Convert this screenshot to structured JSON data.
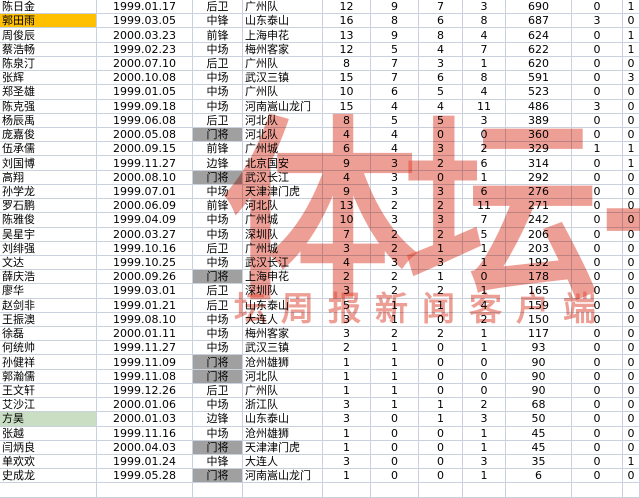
{
  "watermark": {
    "logo_text": "体坛+",
    "tagline_text": "坛周报新闻客户端",
    "color": "#de4634"
  },
  "highlight_colors": {
    "selected_name_orange": "#ffc000",
    "marked_name_green": "#c9dec3",
    "goalkeeper_gray": "#a0a0a0"
  },
  "columns": [
    "name",
    "birth_date",
    "position",
    "club",
    "stat1",
    "stat2",
    "stat3",
    "stat4",
    "minutes",
    "stat6",
    "stat7"
  ],
  "rows": [
    {
      "name": "陈日金",
      "date": "1999.01.17",
      "pos": "后卫",
      "club": "广州队",
      "vals": [
        12,
        9,
        7,
        3,
        690,
        0,
        1
      ],
      "name_bg": null,
      "pos_bg": null
    },
    {
      "name": "郭田雨",
      "date": "1999.03.05",
      "pos": "中锋",
      "club": "山东泰山",
      "vals": [
        16,
        8,
        6,
        8,
        687,
        3,
        0
      ],
      "name_bg": "orange",
      "pos_bg": null
    },
    {
      "name": "周俊辰",
      "date": "2000.03.23",
      "pos": "前锋",
      "club": "上海申花",
      "vals": [
        13,
        9,
        8,
        4,
        624,
        0,
        1
      ],
      "name_bg": null,
      "pos_bg": null
    },
    {
      "name": "蔡浩畅",
      "date": "1999.02.23",
      "pos": "中场",
      "club": "梅州客家",
      "vals": [
        12,
        5,
        4,
        7,
        622,
        0,
        1
      ],
      "name_bg": null,
      "pos_bg": null
    },
    {
      "name": "陈泉汀",
      "date": "2000.07.10",
      "pos": "后卫",
      "club": "广州队",
      "vals": [
        8,
        7,
        3,
        1,
        620,
        0,
        0
      ],
      "name_bg": null,
      "pos_bg": null
    },
    {
      "name": "张辉",
      "date": "2000.10.08",
      "pos": "中场",
      "club": "武汉三镇",
      "vals": [
        15,
        7,
        6,
        8,
        591,
        0,
        3
      ],
      "name_bg": null,
      "pos_bg": null
    },
    {
      "name": "郑圣雄",
      "date": "1999.01.05",
      "pos": "中场",
      "club": "广州队",
      "vals": [
        10,
        6,
        5,
        4,
        523,
        0,
        0
      ],
      "name_bg": null,
      "pos_bg": null
    },
    {
      "name": "陈克强",
      "date": "1999.09.18",
      "pos": "中场",
      "club": "河南嵩山龙门",
      "vals": [
        15,
        4,
        4,
        11,
        486,
        3,
        0
      ],
      "name_bg": null,
      "pos_bg": null
    },
    {
      "name": "杨辰禹",
      "date": "1999.06.08",
      "pos": "后卫",
      "club": "河北队",
      "vals": [
        8,
        5,
        5,
        3,
        389,
        0,
        0
      ],
      "name_bg": null,
      "pos_bg": null
    },
    {
      "name": "庞嘉俊",
      "date": "2000.05.08",
      "pos": "门将",
      "club": "河北队",
      "vals": [
        4,
        4,
        0,
        0,
        360,
        0,
        0
      ],
      "name_bg": null,
      "pos_bg": "gray"
    },
    {
      "name": "伍承儒",
      "date": "2000.09.15",
      "pos": "前锋",
      "club": "广州城",
      "vals": [
        6,
        4,
        3,
        2,
        329,
        1,
        1
      ],
      "name_bg": null,
      "pos_bg": null
    },
    {
      "name": "刘国博",
      "date": "1999.11.27",
      "pos": "边锋",
      "club": "北京国安",
      "vals": [
        9,
        3,
        2,
        6,
        314,
        0,
        1
      ],
      "name_bg": null,
      "pos_bg": null
    },
    {
      "name": "高翔",
      "date": "2000.08.10",
      "pos": "门将",
      "club": "武汉长江",
      "vals": [
        4,
        3,
        0,
        1,
        292,
        0,
        0
      ],
      "name_bg": null,
      "pos_bg": "gray"
    },
    {
      "name": "孙学龙",
      "date": "1999.07.01",
      "pos": "中场",
      "club": "天津津门虎",
      "vals": [
        9,
        3,
        3,
        6,
        276,
        0,
        0
      ],
      "name_bg": null,
      "pos_bg": null
    },
    {
      "name": "罗石鹏",
      "date": "2000.06.09",
      "pos": "前锋",
      "club": "河北队",
      "vals": [
        13,
        2,
        2,
        11,
        271,
        0,
        0
      ],
      "name_bg": null,
      "pos_bg": null
    },
    {
      "name": "陈雅俊",
      "date": "1999.04.09",
      "pos": "中场",
      "club": "广州城",
      "vals": [
        10,
        3,
        3,
        7,
        242,
        0,
        0
      ],
      "name_bg": null,
      "pos_bg": null
    },
    {
      "name": "吴星宇",
      "date": "2000.03.27",
      "pos": "中场",
      "club": "深圳队",
      "vals": [
        7,
        2,
        2,
        5,
        206,
        0,
        0
      ],
      "name_bg": null,
      "pos_bg": null
    },
    {
      "name": "刘绯强",
      "date": "1999.10.16",
      "pos": "后卫",
      "club": "广州城",
      "vals": [
        3,
        2,
        1,
        1,
        203,
        0,
        0
      ],
      "name_bg": null,
      "pos_bg": null
    },
    {
      "name": "文达",
      "date": "1999.10.25",
      "pos": "中场",
      "club": "武汉长江",
      "vals": [
        4,
        3,
        3,
        1,
        192,
        0,
        0
      ],
      "name_bg": null,
      "pos_bg": null
    },
    {
      "name": "薛庆浩",
      "date": "2000.09.26",
      "pos": "门将",
      "club": "上海申花",
      "vals": [
        2,
        2,
        1,
        0,
        178,
        0,
        0
      ],
      "name_bg": null,
      "pos_bg": "gray"
    },
    {
      "name": "廖华",
      "date": "1999.03.01",
      "pos": "后卫",
      "club": "深圳队",
      "vals": [
        3,
        2,
        2,
        1,
        165,
        0,
        0
      ],
      "name_bg": null,
      "pos_bg": null
    },
    {
      "name": "赵剑非",
      "date": "1999.01.21",
      "pos": "后卫",
      "club": "山东泰山",
      "vals": [
        5,
        1,
        1,
        4,
        159,
        0,
        0
      ],
      "name_bg": null,
      "pos_bg": null
    },
    {
      "name": "王振澳",
      "date": "1999.08.10",
      "pos": "中场",
      "club": "大连人",
      "vals": [
        3,
        1,
        0,
        2,
        150,
        0,
        0
      ],
      "name_bg": null,
      "pos_bg": null
    },
    {
      "name": "徐磊",
      "date": "2000.01.11",
      "pos": "中场",
      "club": "梅州客家",
      "vals": [
        3,
        2,
        2,
        1,
        117,
        0,
        0
      ],
      "name_bg": null,
      "pos_bg": null
    },
    {
      "name": "何统帅",
      "date": "1999.11.27",
      "pos": "中场",
      "club": "武汉三镇",
      "vals": [
        2,
        1,
        0,
        1,
        93,
        0,
        0
      ],
      "name_bg": null,
      "pos_bg": null
    },
    {
      "name": "孙健祥",
      "date": "1999.11.09",
      "pos": "门将",
      "club": "沧州雄狮",
      "vals": [
        1,
        1,
        0,
        0,
        90,
        0,
        0
      ],
      "name_bg": null,
      "pos_bg": "gray"
    },
    {
      "name": "郭瀚儒",
      "date": "1999.11.08",
      "pos": "门将",
      "club": "河北队",
      "vals": [
        1,
        1,
        0,
        0,
        90,
        0,
        0
      ],
      "name_bg": null,
      "pos_bg": "gray"
    },
    {
      "name": "王文轩",
      "date": "1999.12.26",
      "pos": "后卫",
      "club": "广州队",
      "vals": [
        1,
        1,
        0,
        0,
        90,
        0,
        0
      ],
      "name_bg": null,
      "pos_bg": null
    },
    {
      "name": "艾沙江",
      "date": "2000.01.06",
      "pos": "中场",
      "club": "浙江队",
      "vals": [
        3,
        1,
        1,
        2,
        68,
        0,
        0
      ],
      "name_bg": null,
      "pos_bg": null
    },
    {
      "name": "方昊",
      "date": "2000.01.03",
      "pos": "边锋",
      "club": "山东泰山",
      "vals": [
        3,
        0,
        1,
        3,
        50,
        0,
        0
      ],
      "name_bg": "green",
      "pos_bg": null
    },
    {
      "name": "张越",
      "date": "1999.11.16",
      "pos": "中场",
      "club": "沧州雄狮",
      "vals": [
        1,
        0,
        0,
        1,
        45,
        0,
        0
      ],
      "name_bg": null,
      "pos_bg": null
    },
    {
      "name": "闫炳良",
      "date": "2000.04.03",
      "pos": "门将",
      "club": "天津津门虎",
      "vals": [
        1,
        0,
        0,
        1,
        45,
        0,
        0
      ],
      "name_bg": null,
      "pos_bg": "gray"
    },
    {
      "name": "单欢欢",
      "date": "1999.01.24",
      "pos": "中锋",
      "club": "大连人",
      "vals": [
        3,
        0,
        0,
        3,
        35,
        0,
        1
      ],
      "name_bg": null,
      "pos_bg": null
    },
    {
      "name": "史成龙",
      "date": "1999.05.28",
      "pos": "门将",
      "club": "河南嵩山龙门",
      "vals": [
        1,
        0,
        0,
        1,
        6,
        0,
        0
      ],
      "name_bg": null,
      "pos_bg": "gray"
    }
  ]
}
